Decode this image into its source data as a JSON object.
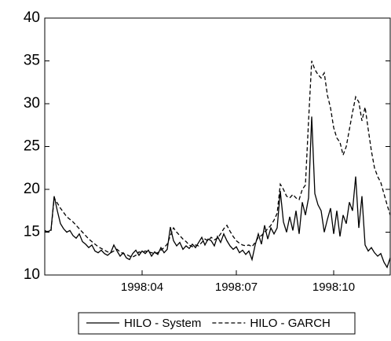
{
  "chart_data": {
    "type": "line",
    "categories": [
      null,
      null,
      null,
      null,
      null,
      null,
      null,
      null,
      null,
      null,
      null,
      null,
      null,
      null,
      null,
      null,
      null,
      null,
      null,
      null,
      null,
      null,
      null,
      null,
      null,
      null,
      null,
      null,
      null,
      null,
      null,
      "1998:04",
      null,
      null,
      null,
      null,
      null,
      null,
      null,
      null,
      null,
      null,
      null,
      null,
      null,
      null,
      null,
      null,
      null,
      null,
      null,
      null,
      null,
      null,
      null,
      null,
      null,
      null,
      null,
      null,
      null,
      "1998:07",
      null,
      null,
      null,
      null,
      null,
      null,
      null,
      null,
      null,
      null,
      null,
      null,
      null,
      null,
      null,
      null,
      null,
      null,
      null,
      null,
      null,
      null,
      null,
      null,
      null,
      null,
      null,
      null,
      null,
      null,
      "1998:10",
      null,
      null,
      null,
      null,
      null,
      null,
      null,
      null,
      null,
      null,
      null,
      null,
      null,
      null,
      null,
      null,
      null,
      null
    ],
    "series": [
      {
        "name": "HILO - System",
        "color": "#000000",
        "style": "solid",
        "values": [
          15.2,
          15.0,
          15.3,
          19.2,
          17.5,
          16.0,
          15.4,
          15.0,
          15.2,
          14.6,
          14.3,
          14.8,
          13.9,
          13.6,
          13.2,
          13.5,
          12.8,
          12.6,
          12.9,
          12.5,
          12.3,
          12.6,
          13.5,
          12.8,
          12.2,
          12.6,
          12.0,
          11.8,
          12.5,
          12.9,
          12.3,
          12.8,
          12.5,
          12.9,
          12.2,
          12.7,
          12.4,
          13.2,
          12.6,
          13.0,
          15.6,
          14.0,
          13.4,
          13.8,
          13.0,
          13.4,
          13.1,
          13.6,
          13.2,
          13.8,
          14.4,
          13.5,
          14.2,
          14.0,
          13.4,
          14.5,
          13.8,
          14.8,
          14.0,
          13.4,
          13.0,
          13.3,
          12.6,
          12.9,
          12.4,
          12.8,
          11.8,
          13.5,
          14.8,
          13.6,
          15.8,
          14.2,
          15.5,
          14.8,
          15.5,
          19.8,
          16.2,
          15.0,
          16.8,
          15.2,
          17.5,
          14.8,
          18.5,
          17.0,
          19.0,
          28.5,
          19.5,
          18.2,
          17.5,
          15.0,
          16.5,
          17.8,
          14.8,
          17.5,
          14.5,
          17.0,
          16.0,
          18.5,
          17.5,
          21.5,
          15.5,
          19.2,
          13.5,
          12.8,
          13.2,
          12.6,
          12.2,
          12.5,
          11.5,
          10.9,
          12.0
        ]
      },
      {
        "name": "HILO - GARCH",
        "color": "#000000",
        "style": "dashed",
        "values": [
          15.0,
          15.1,
          15.2,
          19.0,
          18.4,
          17.8,
          17.3,
          16.8,
          16.5,
          16.2,
          15.8,
          15.4,
          15.0,
          14.6,
          14.2,
          13.9,
          13.6,
          13.3,
          13.1,
          12.9,
          12.7,
          12.6,
          12.8,
          13.0,
          12.7,
          12.5,
          12.4,
          12.2,
          12.1,
          12.3,
          12.7,
          12.6,
          12.8,
          12.7,
          12.6,
          12.5,
          12.6,
          12.9,
          13.2,
          13.6,
          14.6,
          15.5,
          15.0,
          14.6,
          14.2,
          13.9,
          13.5,
          13.3,
          13.5,
          13.4,
          13.8,
          14.2,
          14.0,
          14.4,
          14.1,
          14.3,
          14.8,
          15.4,
          15.8,
          15.1,
          14.5,
          14.0,
          13.7,
          13.5,
          13.4,
          13.5,
          13.3,
          13.8,
          14.4,
          14.6,
          15.0,
          15.4,
          15.8,
          16.4,
          17.2,
          20.6,
          20.0,
          19.2,
          19.0,
          19.4,
          19.0,
          18.8,
          20.0,
          20.5,
          28.0,
          35.0,
          34.0,
          33.4,
          33.0,
          33.6,
          31.0,
          29.5,
          27.2,
          26.0,
          25.5,
          24.0,
          25.0,
          27.0,
          29.0,
          30.8,
          30.2,
          28.0,
          29.6,
          27.0,
          24.5,
          22.5,
          21.5,
          20.8,
          19.5,
          18.2,
          17.0
        ]
      }
    ],
    "ylim": [
      10,
      40
    ],
    "yticks": [
      10,
      15,
      20,
      25,
      30,
      35,
      40
    ],
    "grid": false,
    "legend": "bottom"
  }
}
